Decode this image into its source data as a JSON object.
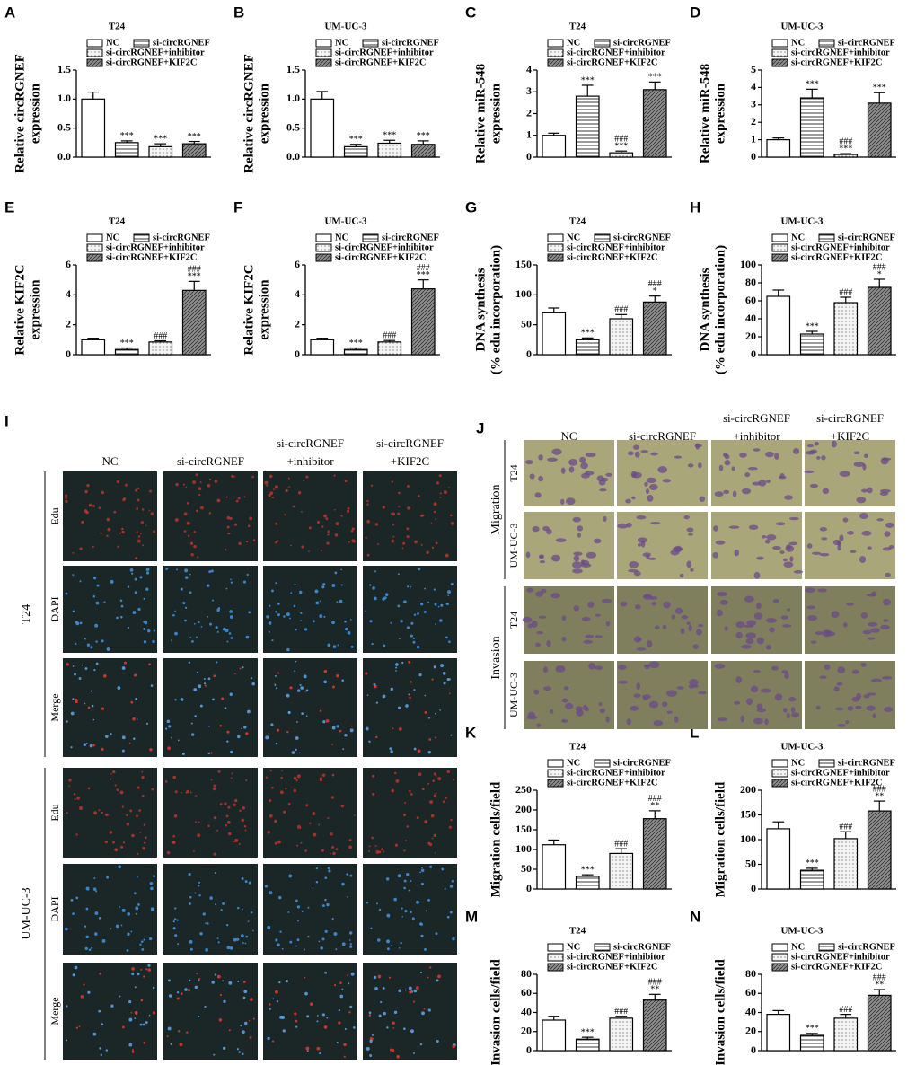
{
  "chart_data": [
    {
      "type": "bar",
      "panel": "A",
      "title": "T24",
      "ylabel": [
        "Relative circRGNEF",
        "expression"
      ],
      "ylim": [
        0,
        1.5
      ],
      "yticks": [
        {
          "value": 0,
          "label": "0.0"
        },
        0.5,
        {
          "value": 1,
          "label": "1.0"
        },
        1.5
      ],
      "series": [
        {
          "name": "NC",
          "color": "#ffffff",
          "pattern": "none",
          "values": [
            1.0
          ],
          "errors": [
            0.12
          ]
        },
        {
          "name": "si-circRGNEF",
          "color": "#ffffff",
          "pattern": "hlines",
          "values": [
            0.25
          ],
          "errors": [
            0.03
          ],
          "marks": [
            "***"
          ]
        },
        {
          "name": "si-circRGNEF+inhibitor",
          "color": "#f4f4f4",
          "pattern": "dots",
          "values": [
            0.18
          ],
          "errors": [
            0.05
          ],
          "marks": [
            "***"
          ]
        },
        {
          "name": "si-circRGNEF+KIF2C",
          "color": "#8c8c8c",
          "pattern": "dark",
          "values": [
            0.23
          ],
          "errors": [
            0.04
          ],
          "marks": [
            "***"
          ]
        }
      ]
    },
    {
      "type": "bar",
      "panel": "B",
      "title": "UM-UC-3",
      "ylabel": [
        "Relative circRGNEF",
        "expression"
      ],
      "ylim": [
        0,
        1.5
      ],
      "yticks": [
        {
          "value": 0,
          "label": "0.0"
        },
        0.5,
        {
          "value": 1,
          "label": "1.0"
        },
        1.5
      ],
      "series": [
        {
          "name": "NC",
          "color": "#ffffff",
          "pattern": "none",
          "values": [
            1.0
          ],
          "errors": [
            0.13
          ]
        },
        {
          "name": "si-circRGNEF",
          "color": "#ffffff",
          "pattern": "hlines",
          "values": [
            0.18
          ],
          "errors": [
            0.04
          ],
          "marks": [
            "***"
          ]
        },
        {
          "name": "si-circRGNEF+inhibitor",
          "color": "#f4f4f4",
          "pattern": "dots",
          "values": [
            0.24
          ],
          "errors": [
            0.05
          ],
          "marks": [
            "***"
          ]
        },
        {
          "name": "si-circRGNEF+KIF2C",
          "color": "#8c8c8c",
          "pattern": "dark",
          "values": [
            0.22
          ],
          "errors": [
            0.06
          ],
          "marks": [
            "***"
          ]
        }
      ]
    },
    {
      "type": "bar",
      "panel": "C",
      "title": "T24",
      "ylabel": [
        "Relative miR-548",
        "expression"
      ],
      "ylim": [
        0,
        4
      ],
      "yticks": [
        0,
        1,
        2,
        3,
        4
      ],
      "series": [
        {
          "name": "NC",
          "color": "#ffffff",
          "pattern": "none",
          "values": [
            1.0
          ],
          "errors": [
            0.1
          ]
        },
        {
          "name": "si-circRGNEF",
          "color": "#ffffff",
          "pattern": "hlines",
          "values": [
            2.8
          ],
          "errors": [
            0.5
          ],
          "marks": [
            "***"
          ]
        },
        {
          "name": "si-circRGNEF+inhibitor",
          "color": "#f4f4f4",
          "pattern": "dots",
          "values": [
            0.2
          ],
          "errors": [
            0.08
          ],
          "marks": [
            "###",
            "***"
          ]
        },
        {
          "name": "si-circRGNEF+KIF2C",
          "color": "#8c8c8c",
          "pattern": "dark",
          "values": [
            3.1
          ],
          "errors": [
            0.35
          ],
          "marks": [
            "***"
          ]
        }
      ]
    },
    {
      "type": "bar",
      "panel": "D",
      "title": "UM-UC-3",
      "ylabel": [
        "Relative miR-548",
        "expression"
      ],
      "ylim": [
        0,
        5
      ],
      "yticks": [
        0,
        1,
        2,
        3,
        4,
        5
      ],
      "series": [
        {
          "name": "NC",
          "color": "#ffffff",
          "pattern": "none",
          "values": [
            1.0
          ],
          "errors": [
            0.1
          ]
        },
        {
          "name": "si-circRGNEF",
          "color": "#ffffff",
          "pattern": "hlines",
          "values": [
            3.4
          ],
          "errors": [
            0.5
          ],
          "marks": [
            "***"
          ]
        },
        {
          "name": "si-circRGNEF+inhibitor",
          "color": "#f4f4f4",
          "pattern": "dots",
          "values": [
            0.15
          ],
          "errors": [
            0.05
          ],
          "marks": [
            "###",
            "***"
          ]
        },
        {
          "name": "si-circRGNEF+KIF2C",
          "color": "#8c8c8c",
          "pattern": "dark",
          "values": [
            3.1
          ],
          "errors": [
            0.6
          ],
          "marks": [
            "***"
          ]
        }
      ]
    },
    {
      "type": "bar",
      "panel": "E",
      "title": "T24",
      "ylabel": [
        "Relative KIF2C",
        "expression"
      ],
      "ylim": [
        0,
        6
      ],
      "yticks": [
        0,
        2,
        4,
        6
      ],
      "series": [
        {
          "name": "NC",
          "color": "#ffffff",
          "pattern": "none",
          "values": [
            1.0
          ],
          "errors": [
            0.1
          ]
        },
        {
          "name": "si-circRGNEF",
          "color": "#ffffff",
          "pattern": "hlines",
          "values": [
            0.35
          ],
          "errors": [
            0.1
          ],
          "marks": [
            "***"
          ]
        },
        {
          "name": "si-circRGNEF+inhibitor",
          "color": "#f4f4f4",
          "pattern": "dots",
          "values": [
            0.85
          ],
          "errors": [
            0.08
          ],
          "marks": [
            "###"
          ]
        },
        {
          "name": "si-circRGNEF+KIF2C",
          "color": "#8c8c8c",
          "pattern": "dark",
          "values": [
            4.3
          ],
          "errors": [
            0.6
          ],
          "marks": [
            "###",
            "***"
          ]
        }
      ]
    },
    {
      "type": "bar",
      "panel": "F",
      "title": "UM-UC-3",
      "ylabel": [
        "Relative KIF2C",
        "expression"
      ],
      "ylim": [
        0,
        6
      ],
      "yticks": [
        0,
        2,
        4,
        6
      ],
      "series": [
        {
          "name": "NC",
          "color": "#ffffff",
          "pattern": "none",
          "values": [
            1.0
          ],
          "errors": [
            0.1
          ]
        },
        {
          "name": "si-circRGNEF",
          "color": "#ffffff",
          "pattern": "hlines",
          "values": [
            0.35
          ],
          "errors": [
            0.1
          ],
          "marks": [
            "***"
          ]
        },
        {
          "name": "si-circRGNEF+inhibitor",
          "color": "#f4f4f4",
          "pattern": "dots",
          "values": [
            0.85
          ],
          "errors": [
            0.1
          ],
          "marks": [
            "###"
          ]
        },
        {
          "name": "si-circRGNEF+KIF2C",
          "color": "#8c8c8c",
          "pattern": "dark",
          "values": [
            4.4
          ],
          "errors": [
            0.6
          ],
          "marks": [
            "###",
            "***"
          ]
        }
      ]
    },
    {
      "type": "bar",
      "panel": "G",
      "title": "T24",
      "ylabel": [
        "DNA synthesis",
        "(% edu incorporation)"
      ],
      "ylim": [
        0,
        150
      ],
      "yticks": [
        0,
        50,
        100,
        150
      ],
      "series": [
        {
          "name": "NC",
          "color": "#ffffff",
          "pattern": "none",
          "values": [
            70
          ],
          "errors": [
            8
          ]
        },
        {
          "name": "si-circRGNEF",
          "color": "#ffffff",
          "pattern": "hlines",
          "values": [
            25
          ],
          "errors": [
            3
          ],
          "marks": [
            "***"
          ]
        },
        {
          "name": "si-circRGNEF+inhibitor",
          "color": "#f4f4f4",
          "pattern": "dots",
          "values": [
            60
          ],
          "errors": [
            7
          ],
          "marks": [
            "###"
          ]
        },
        {
          "name": "si-circRGNEF+KIF2C",
          "color": "#8c8c8c",
          "pattern": "dark",
          "values": [
            88
          ],
          "errors": [
            10
          ],
          "marks": [
            "###",
            "*"
          ]
        }
      ]
    },
    {
      "type": "bar",
      "panel": "H",
      "title": "UM-UC-3",
      "ylabel": [
        "DNA synthesis",
        "(% edu incorporation)"
      ],
      "ylim": [
        0,
        100
      ],
      "yticks": [
        0,
        20,
        40,
        60,
        80,
        100
      ],
      "series": [
        {
          "name": "NC",
          "color": "#ffffff",
          "pattern": "none",
          "values": [
            65
          ],
          "errors": [
            7
          ]
        },
        {
          "name": "si-circRGNEF",
          "color": "#ffffff",
          "pattern": "hlines",
          "values": [
            23
          ],
          "errors": [
            3
          ],
          "marks": [
            "***"
          ]
        },
        {
          "name": "si-circRGNEF+inhibitor",
          "color": "#f4f4f4",
          "pattern": "dots",
          "values": [
            58
          ],
          "errors": [
            6
          ],
          "marks": [
            "###"
          ]
        },
        {
          "name": "si-circRGNEF+KIF2C",
          "color": "#8c8c8c",
          "pattern": "dark",
          "values": [
            75
          ],
          "errors": [
            9
          ],
          "marks": [
            "###",
            "*"
          ]
        }
      ]
    },
    {
      "type": "bar",
      "panel": "K",
      "title": "T24",
      "ylabel": [
        "Migration cells/field"
      ],
      "ylim": [
        0,
        250
      ],
      "yticks": [
        0,
        50,
        100,
        150,
        200,
        250
      ],
      "series": [
        {
          "name": "NC",
          "color": "#ffffff",
          "pattern": "none",
          "values": [
            112
          ],
          "errors": [
            12
          ]
        },
        {
          "name": "si-circRGNEF",
          "color": "#ffffff",
          "pattern": "hlines",
          "values": [
            32
          ],
          "errors": [
            4
          ],
          "marks": [
            "***"
          ]
        },
        {
          "name": "si-circRGNEF+inhibitor",
          "color": "#f4f4f4",
          "pattern": "dots",
          "values": [
            90
          ],
          "errors": [
            12
          ],
          "marks": [
            "###"
          ]
        },
        {
          "name": "si-circRGNEF+KIF2C",
          "color": "#8c8c8c",
          "pattern": "dark",
          "values": [
            178
          ],
          "errors": [
            20
          ],
          "marks": [
            "###",
            "**"
          ]
        }
      ]
    },
    {
      "type": "bar",
      "panel": "L",
      "title": "UM-UC-3",
      "ylabel": [
        "Migration cells/field"
      ],
      "ylim": [
        0,
        200
      ],
      "yticks": [
        0,
        50,
        100,
        150,
        200
      ],
      "series": [
        {
          "name": "NC",
          "color": "#ffffff",
          "pattern": "none",
          "values": [
            122
          ],
          "errors": [
            14
          ]
        },
        {
          "name": "si-circRGNEF",
          "color": "#ffffff",
          "pattern": "hlines",
          "values": [
            38
          ],
          "errors": [
            4
          ],
          "marks": [
            "***"
          ]
        },
        {
          "name": "si-circRGNEF+inhibitor",
          "color": "#f4f4f4",
          "pattern": "dots",
          "values": [
            102
          ],
          "errors": [
            14
          ],
          "marks": [
            "###"
          ]
        },
        {
          "name": "si-circRGNEF+KIF2C",
          "color": "#8c8c8c",
          "pattern": "dark",
          "values": [
            158
          ],
          "errors": [
            20
          ],
          "marks": [
            "###",
            "**"
          ]
        }
      ]
    },
    {
      "type": "bar",
      "panel": "M",
      "title": "T24",
      "ylabel": [
        "Invasion cells/field"
      ],
      "ylim": [
        0,
        80
      ],
      "yticks": [
        0,
        20,
        40,
        60,
        80
      ],
      "series": [
        {
          "name": "NC",
          "color": "#ffffff",
          "pattern": "none",
          "values": [
            32
          ],
          "errors": [
            4
          ]
        },
        {
          "name": "si-circRGNEF",
          "color": "#ffffff",
          "pattern": "hlines",
          "values": [
            12
          ],
          "errors": [
            2
          ],
          "marks": [
            "***"
          ]
        },
        {
          "name": "si-circRGNEF+inhibitor",
          "color": "#f4f4f4",
          "pattern": "dots",
          "values": [
            34
          ],
          "errors": [
            2
          ],
          "marks": [
            "###"
          ]
        },
        {
          "name": "si-circRGNEF+KIF2C",
          "color": "#8c8c8c",
          "pattern": "dark",
          "values": [
            53
          ],
          "errors": [
            6
          ],
          "marks": [
            "###",
            "**"
          ]
        }
      ]
    },
    {
      "type": "bar",
      "panel": "N",
      "title": "UM-UC-3",
      "ylabel": [
        "Invasion cells/field"
      ],
      "ylim": [
        0,
        80
      ],
      "yticks": [
        0,
        20,
        40,
        60,
        80
      ],
      "series": [
        {
          "name": "NC",
          "color": "#ffffff",
          "pattern": "none",
          "values": [
            38
          ],
          "errors": [
            4
          ]
        },
        {
          "name": "si-circRGNEF",
          "color": "#ffffff",
          "pattern": "hlines",
          "values": [
            16
          ],
          "errors": [
            2
          ],
          "marks": [
            "***"
          ]
        },
        {
          "name": "si-circRGNEF+inhibitor",
          "color": "#f4f4f4",
          "pattern": "dots",
          "values": [
            34
          ],
          "errors": [
            4
          ],
          "marks": [
            "###"
          ]
        },
        {
          "name": "si-circRGNEF+KIF2C",
          "color": "#8c8c8c",
          "pattern": "dark",
          "values": [
            58
          ],
          "errors": [
            6
          ],
          "marks": [
            "###",
            "**"
          ]
        }
      ]
    }
  ],
  "figure_panels": [
    {
      "letter": "I",
      "columns": [
        [
          "NC"
        ],
        [
          "si-circRGNEF"
        ],
        [
          "si-circRGNEF",
          "+inhibitor"
        ],
        [
          "si-circRGNEF",
          "+KIF2C"
        ]
      ],
      "groups": [
        {
          "label": "T24",
          "rows": [
            "Edu",
            "DAPI",
            "Merge"
          ]
        },
        {
          "label": "UM-UC-3",
          "rows": [
            "Edu",
            "DAPI",
            "Merge"
          ]
        }
      ]
    },
    {
      "letter": "J",
      "columns": [
        [
          "NC"
        ],
        [
          "si-circRGNEF"
        ],
        [
          "si-circRGNEF",
          "+inhibitor"
        ],
        [
          "si-circRGNEF",
          "+KIF2C"
        ]
      ],
      "groups": [
        {
          "label": "Migration",
          "rows": [
            "T24",
            "UM-UC-3"
          ]
        },
        {
          "label": "Invasion",
          "rows": [
            "T24",
            "UM-UC-3"
          ]
        }
      ]
    }
  ]
}
